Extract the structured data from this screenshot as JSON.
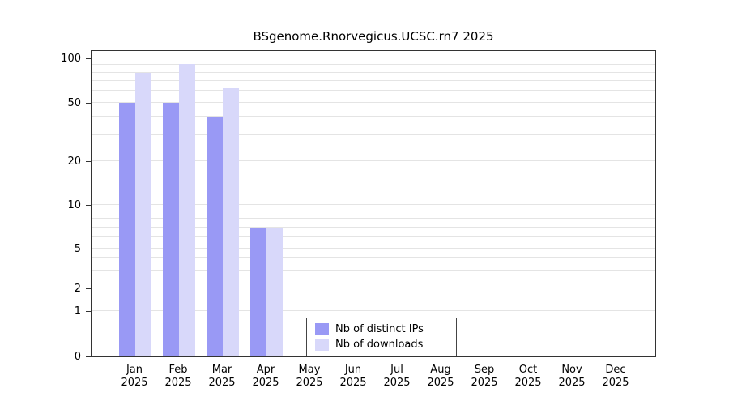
{
  "chart_data": {
    "type": "bar",
    "title": "BSgenome.Rnorvegicus.UCSC.rn7 2025",
    "categories": [
      "Jan",
      "Feb",
      "Mar",
      "Apr",
      "May",
      "Jun",
      "Jul",
      "Aug",
      "Sep",
      "Oct",
      "Nov",
      "Dec"
    ],
    "x_tick_second_line": "2025",
    "series": [
      {
        "name": "Nb of distinct IPs",
        "color": "#9999f5",
        "values": [
          50,
          50,
          40,
          7,
          0,
          0,
          0,
          0,
          0,
          0,
          0,
          0
        ]
      },
      {
        "name": "Nb of downloads",
        "color": "#d8d8fa",
        "values": [
          80,
          92,
          63,
          7,
          0,
          0,
          0,
          0,
          0,
          0,
          0,
          0
        ]
      }
    ],
    "y_ticks": [
      0,
      1,
      2,
      5,
      10,
      20,
      50,
      100
    ],
    "grid_values": [
      1,
      2,
      3,
      4,
      5,
      6,
      7,
      8,
      9,
      10,
      20,
      30,
      40,
      50,
      60,
      70,
      80,
      90,
      100
    ],
    "y_scale": "pseudo-log",
    "ylim": [
      0,
      100
    ],
    "grid": true,
    "legend_position": "bottom-center-inside"
  }
}
